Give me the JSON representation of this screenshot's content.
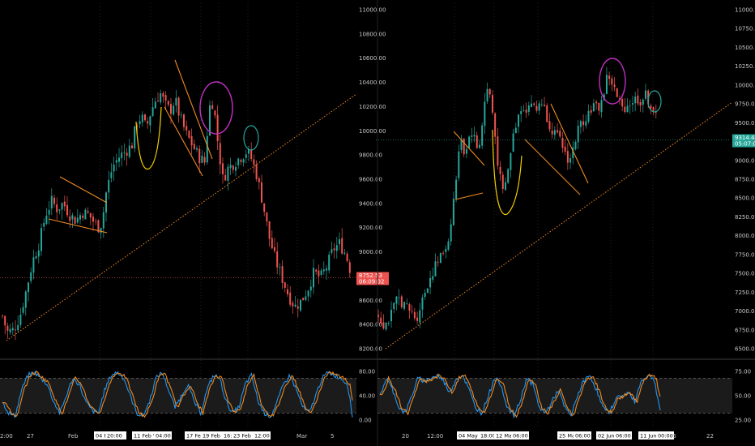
{
  "colors": {
    "background": "#000000",
    "up": "#26a69a",
    "down": "#ef5350",
    "stoch_k": "#2196f3",
    "stoch_d": "#f0891d",
    "trendline": "#f08a24",
    "cup": "#f5d000",
    "circle_top": "#c030c0",
    "circle_green": "#26a69a",
    "axis_text": "#c8c8c8",
    "grid": "#3a3a3a"
  },
  "chart_data": [
    {
      "type": "candlestick",
      "name": "left-panel",
      "yticks": [
        "11000.00",
        "10800.00",
        "10600.00",
        "10400.00",
        "10200.00",
        "10000.00",
        "9800.00",
        "9600.00",
        "9400.00",
        "9200.00",
        "9000.00",
        "8800.00",
        "8600.00",
        "8400.00",
        "8200.00"
      ],
      "xticks": [
        "2:00",
        "27",
        "Feb",
        "04 Feb '20",
        "20:00",
        "11 Feb '20",
        "04:00",
        "17 Feb '20",
        "19 Feb '20",
        "16:00",
        "23 Feb '20",
        "12:00",
        "Mar",
        "5"
      ],
      "price_tags": [
        "8752.53",
        "06:09:02"
      ],
      "close_path": [
        [
          0,
          8420
        ],
        [
          6,
          8280
        ],
        [
          14,
          8300
        ],
        [
          22,
          8420
        ],
        [
          30,
          8650
        ],
        [
          38,
          8900
        ],
        [
          46,
          9050
        ],
        [
          54,
          9300
        ],
        [
          62,
          9420
        ],
        [
          68,
          9350
        ],
        [
          76,
          9400
        ],
        [
          84,
          9300
        ],
        [
          92,
          9250
        ],
        [
          100,
          9320
        ],
        [
          108,
          9300
        ],
        [
          116,
          9220
        ],
        [
          122,
          9180
        ],
        [
          126,
          9300
        ],
        [
          130,
          9500
        ],
        [
          138,
          9720
        ],
        [
          146,
          9800
        ],
        [
          154,
          9850
        ],
        [
          162,
          9900
        ],
        [
          168,
          10100
        ],
        [
          174,
          10150
        ],
        [
          180,
          10050
        ],
        [
          186,
          10200
        ],
        [
          192,
          10300
        ],
        [
          198,
          10350
        ],
        [
          204,
          10250
        ],
        [
          210,
          10200
        ],
        [
          216,
          10300
        ],
        [
          222,
          10150
        ],
        [
          230,
          10000
        ],
        [
          238,
          9900
        ],
        [
          246,
          9800
        ],
        [
          254,
          9750
        ],
        [
          258,
          10200
        ],
        [
          262,
          10300
        ],
        [
          266,
          10150
        ],
        [
          270,
          9900
        ],
        [
          276,
          9600
        ],
        [
          282,
          9700
        ],
        [
          290,
          9750
        ],
        [
          298,
          9800
        ],
        [
          306,
          9850
        ],
        [
          312,
          9780
        ],
        [
          318,
          9650
        ],
        [
          326,
          9400
        ],
        [
          334,
          9100
        ],
        [
          342,
          8900
        ],
        [
          350,
          8750
        ],
        [
          358,
          8600
        ],
        [
          366,
          8500
        ],
        [
          374,
          8550
        ],
        [
          382,
          8650
        ],
        [
          390,
          8800
        ],
        [
          398,
          8750
        ],
        [
          406,
          8850
        ],
        [
          414,
          9000
        ],
        [
          422,
          9050
        ],
        [
          430,
          8950
        ],
        [
          438,
          8752
        ]
      ],
      "stoch_k_path": [
        [
          0,
          40
        ],
        [
          8,
          20
        ],
        [
          16,
          15
        ],
        [
          24,
          60
        ],
        [
          32,
          85
        ],
        [
          40,
          90
        ],
        [
          48,
          80
        ],
        [
          56,
          70
        ],
        [
          64,
          40
        ],
        [
          72,
          20
        ],
        [
          80,
          50
        ],
        [
          88,
          80
        ],
        [
          96,
          70
        ],
        [
          104,
          40
        ],
        [
          112,
          25
        ],
        [
          120,
          20
        ],
        [
          128,
          60
        ],
        [
          136,
          85
        ],
        [
          144,
          90
        ],
        [
          152,
          80
        ],
        [
          160,
          50
        ],
        [
          168,
          20
        ],
        [
          176,
          15
        ],
        [
          184,
          40
        ],
        [
          192,
          80
        ],
        [
          200,
          90
        ],
        [
          208,
          60
        ],
        [
          216,
          30
        ],
        [
          224,
          50
        ],
        [
          232,
          70
        ],
        [
          240,
          40
        ],
        [
          248,
          20
        ],
        [
          256,
          60
        ],
        [
          264,
          85
        ],
        [
          272,
          80
        ],
        [
          280,
          40
        ],
        [
          288,
          20
        ],
        [
          296,
          30
        ],
        [
          304,
          70
        ],
        [
          312,
          85
        ],
        [
          320,
          40
        ],
        [
          328,
          20
        ],
        [
          336,
          15
        ],
        [
          344,
          40
        ],
        [
          352,
          70
        ],
        [
          360,
          85
        ],
        [
          368,
          60
        ],
        [
          376,
          30
        ],
        [
          384,
          20
        ],
        [
          392,
          50
        ],
        [
          400,
          80
        ],
        [
          408,
          90
        ],
        [
          416,
          85
        ],
        [
          424,
          80
        ],
        [
          432,
          70
        ],
        [
          438,
          15
        ]
      ],
      "stoch_yticks": [
        "80.00",
        "40.00",
        "0.00"
      ]
    },
    {
      "type": "candlestick",
      "name": "right-panel",
      "yticks": [
        "11000.00",
        "10750.00",
        "10500.00",
        "10250.00",
        "10000.00",
        "9750.00",
        "9500.00",
        "9250.00",
        "9000.00",
        "8750.00",
        "8500.00",
        "8250.00",
        "8000.00",
        "7750.00",
        "7500.00",
        "7250.00",
        "7000.00",
        "6750.00",
        "6500.00"
      ],
      "xticks": [
        "20",
        "12:00",
        "04 May '20",
        "18:00",
        "12 May '20",
        "06:00",
        "25 May '20",
        "06:00",
        "02 Jun '20",
        "06:00",
        "11 Jun '20",
        "00:00",
        "15",
        "22"
      ],
      "price_tags": [
        "9314.44",
        "05:07:03"
      ],
      "close_path": [
        [
          0,
          6850
        ],
        [
          8,
          6700
        ],
        [
          16,
          6850
        ],
        [
          24,
          7100
        ],
        [
          32,
          7000
        ],
        [
          40,
          6900
        ],
        [
          48,
          6800
        ],
        [
          56,
          7100
        ],
        [
          64,
          7350
        ],
        [
          72,
          7550
        ],
        [
          80,
          7700
        ],
        [
          88,
          7900
        ],
        [
          96,
          8600
        ],
        [
          100,
          9000
        ],
        [
          104,
          9400
        ],
        [
          108,
          9100
        ],
        [
          112,
          9300
        ],
        [
          118,
          9450
        ],
        [
          124,
          9200
        ],
        [
          128,
          9300
        ],
        [
          132,
          9700
        ],
        [
          136,
          10050
        ],
        [
          140,
          9950
        ],
        [
          144,
          9650
        ],
        [
          150,
          9000
        ],
        [
          156,
          8550
        ],
        [
          162,
          8800
        ],
        [
          168,
          9300
        ],
        [
          174,
          9600
        ],
        [
          180,
          9800
        ],
        [
          186,
          9750
        ],
        [
          192,
          9850
        ],
        [
          198,
          9700
        ],
        [
          204,
          9900
        ],
        [
          210,
          9700
        ],
        [
          216,
          9500
        ],
        [
          222,
          9400
        ],
        [
          228,
          9300
        ],
        [
          234,
          9150
        ],
        [
          240,
          9000
        ],
        [
          246,
          9250
        ],
        [
          252,
          9500
        ],
        [
          258,
          9600
        ],
        [
          264,
          9700
        ],
        [
          270,
          9800
        ],
        [
          276,
          9750
        ],
        [
          282,
          9900
        ],
        [
          288,
          10250
        ],
        [
          294,
          10100
        ],
        [
          300,
          9900
        ],
        [
          306,
          9750
        ],
        [
          312,
          9800
        ],
        [
          318,
          9850
        ],
        [
          324,
          9900
        ],
        [
          330,
          9850
        ],
        [
          336,
          9950
        ],
        [
          342,
          9800
        ],
        [
          348,
          9700
        ],
        [
          352,
          9314
        ]
      ],
      "stoch_k_path": [
        [
          0,
          50
        ],
        [
          8,
          80
        ],
        [
          16,
          60
        ],
        [
          24,
          30
        ],
        [
          32,
          20
        ],
        [
          40,
          50
        ],
        [
          48,
          80
        ],
        [
          56,
          75
        ],
        [
          64,
          80
        ],
        [
          72,
          85
        ],
        [
          80,
          75
        ],
        [
          88,
          55
        ],
        [
          96,
          80
        ],
        [
          104,
          85
        ],
        [
          112,
          60
        ],
        [
          120,
          30
        ],
        [
          128,
          20
        ],
        [
          136,
          50
        ],
        [
          144,
          80
        ],
        [
          152,
          70
        ],
        [
          160,
          30
        ],
        [
          168,
          15
        ],
        [
          176,
          40
        ],
        [
          184,
          80
        ],
        [
          192,
          70
        ],
        [
          200,
          30
        ],
        [
          208,
          20
        ],
        [
          216,
          40
        ],
        [
          224,
          60
        ],
        [
          232,
          30
        ],
        [
          240,
          15
        ],
        [
          248,
          50
        ],
        [
          256,
          75
        ],
        [
          264,
          85
        ],
        [
          272,
          60
        ],
        [
          280,
          30
        ],
        [
          288,
          20
        ],
        [
          296,
          45
        ],
        [
          304,
          50
        ],
        [
          312,
          55
        ],
        [
          320,
          40
        ],
        [
          328,
          75
        ],
        [
          336,
          85
        ],
        [
          344,
          80
        ],
        [
          352,
          25
        ]
      ],
      "stoch_yticks": [
        "75.00",
        "50.00",
        "25.00"
      ]
    }
  ]
}
